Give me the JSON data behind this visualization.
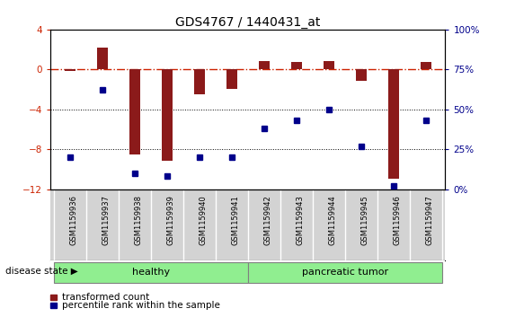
{
  "title": "GDS4767 / 1440431_at",
  "samples": [
    "GSM1159936",
    "GSM1159937",
    "GSM1159938",
    "GSM1159939",
    "GSM1159940",
    "GSM1159941",
    "GSM1159942",
    "GSM1159943",
    "GSM1159944",
    "GSM1159945",
    "GSM1159946",
    "GSM1159947"
  ],
  "red_bars": [
    -0.2,
    2.2,
    -8.5,
    -9.2,
    -2.5,
    -2.0,
    0.8,
    0.7,
    0.8,
    -1.2,
    -11.0,
    0.7
  ],
  "blue_dots": [
    20,
    62,
    10,
    8,
    20,
    20,
    38,
    43,
    50,
    27,
    2,
    43
  ],
  "ylim_left": [
    -12,
    4
  ],
  "ylim_right": [
    0,
    100
  ],
  "yticks_left": [
    4,
    0,
    -4,
    -8,
    -12
  ],
  "yticks_right": [
    100,
    75,
    50,
    25,
    0
  ],
  "healthy_label": "healthy",
  "tumor_label": "pancreatic tumor",
  "healthy_count": 6,
  "tumor_count": 6,
  "disease_state_label": "disease state",
  "legend_red": "transformed count",
  "legend_blue": "percentile rank within the sample",
  "bar_color": "#8B1A1A",
  "dot_color": "#00008B",
  "sample_bg_color": "#D3D3D3",
  "healthy_color": "#90EE90",
  "tumor_color": "#90EE90",
  "ref_line_color": "#CC2200",
  "grid_line_color": "#000000",
  "bar_width": 0.35
}
